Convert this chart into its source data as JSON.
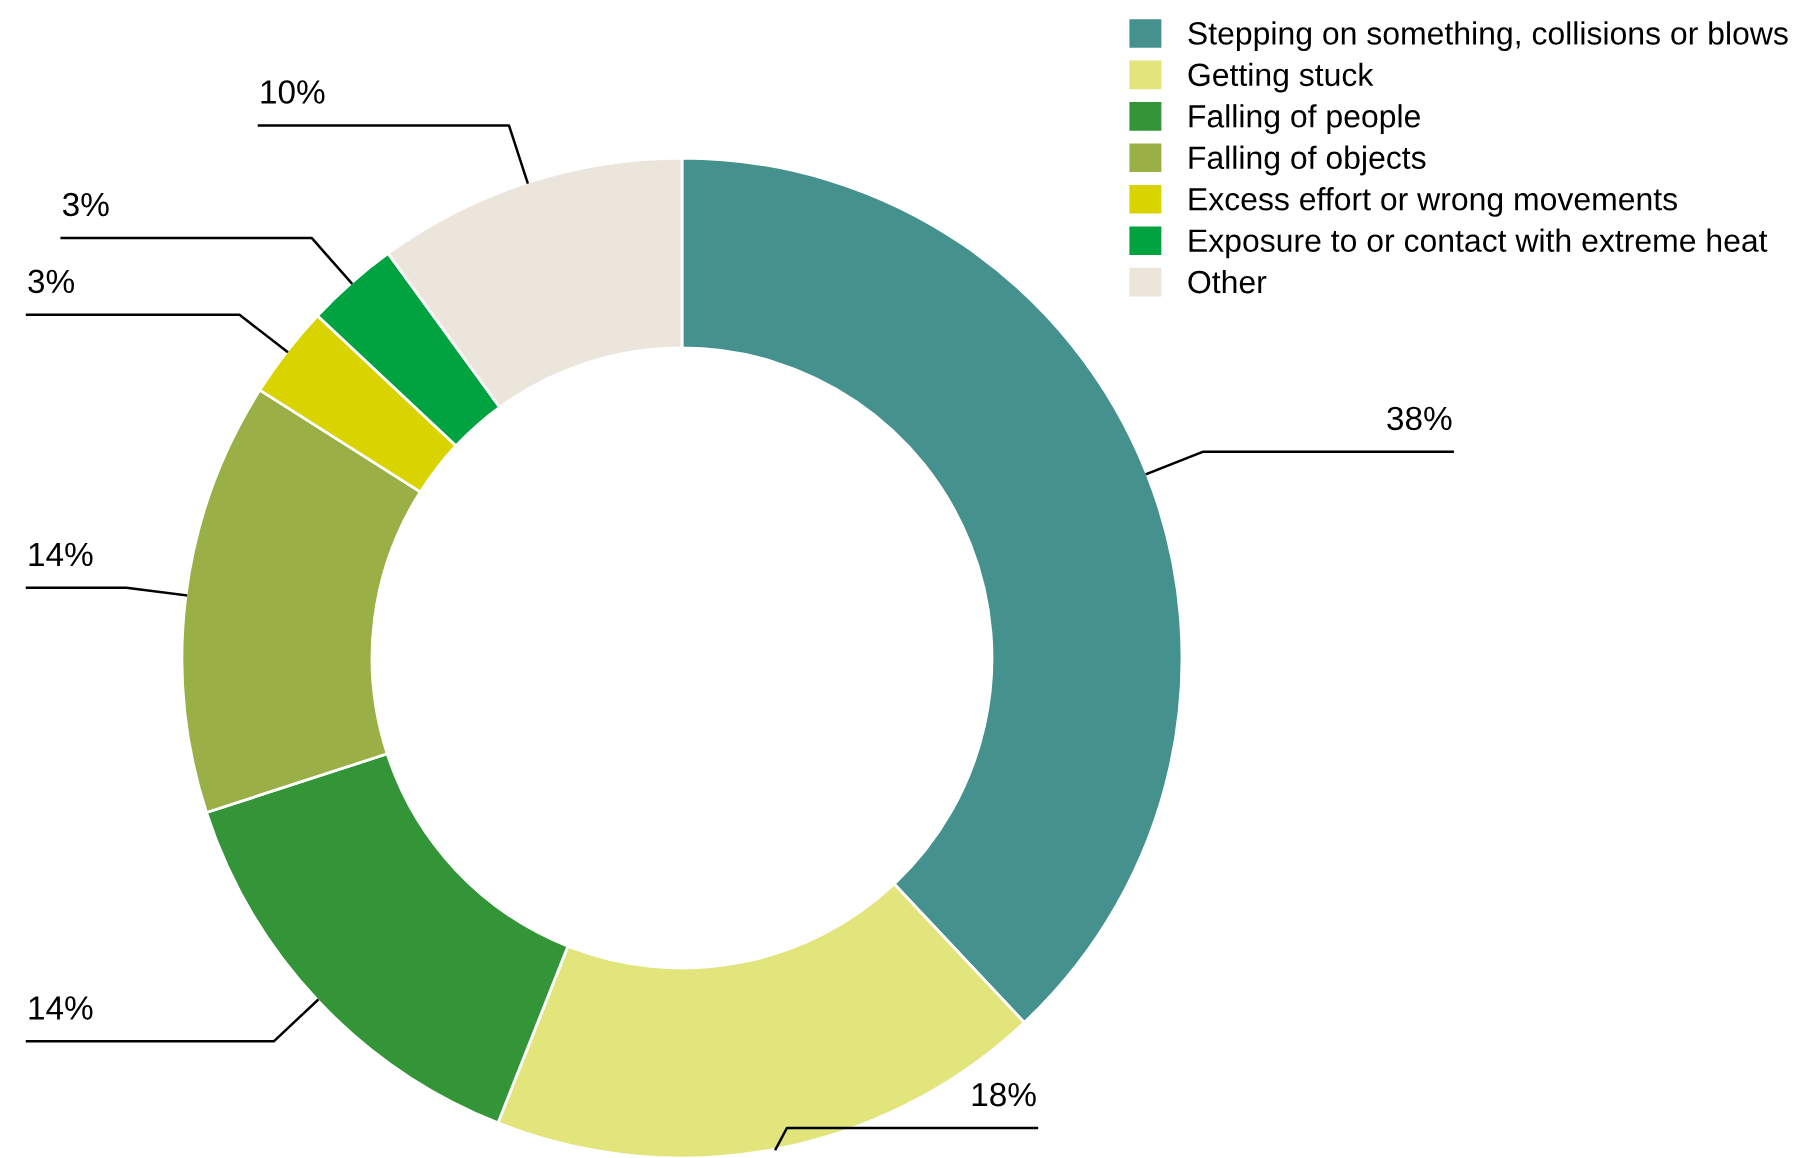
{
  "chart_data": {
    "type": "donut",
    "categories": [
      "Stepping on something, collisions or blows",
      "Getting stuck",
      "Falling of people",
      "Falling of objects",
      "Excess effort or wrong movements",
      "Exposure to or contact with extreme heat",
      "Other"
    ],
    "values": [
      38,
      18,
      14,
      14,
      3,
      3,
      10
    ],
    "colors": [
      "#45918e",
      "#e2e47c",
      "#339538",
      "#9ab047",
      "#d9d300",
      "#00a33f",
      "#ebe5dc"
    ],
    "value_labels": [
      "38%",
      "18%",
      "14%",
      "14%",
      "3%",
      "3%",
      "10%"
    ],
    "legend": "top right"
  }
}
